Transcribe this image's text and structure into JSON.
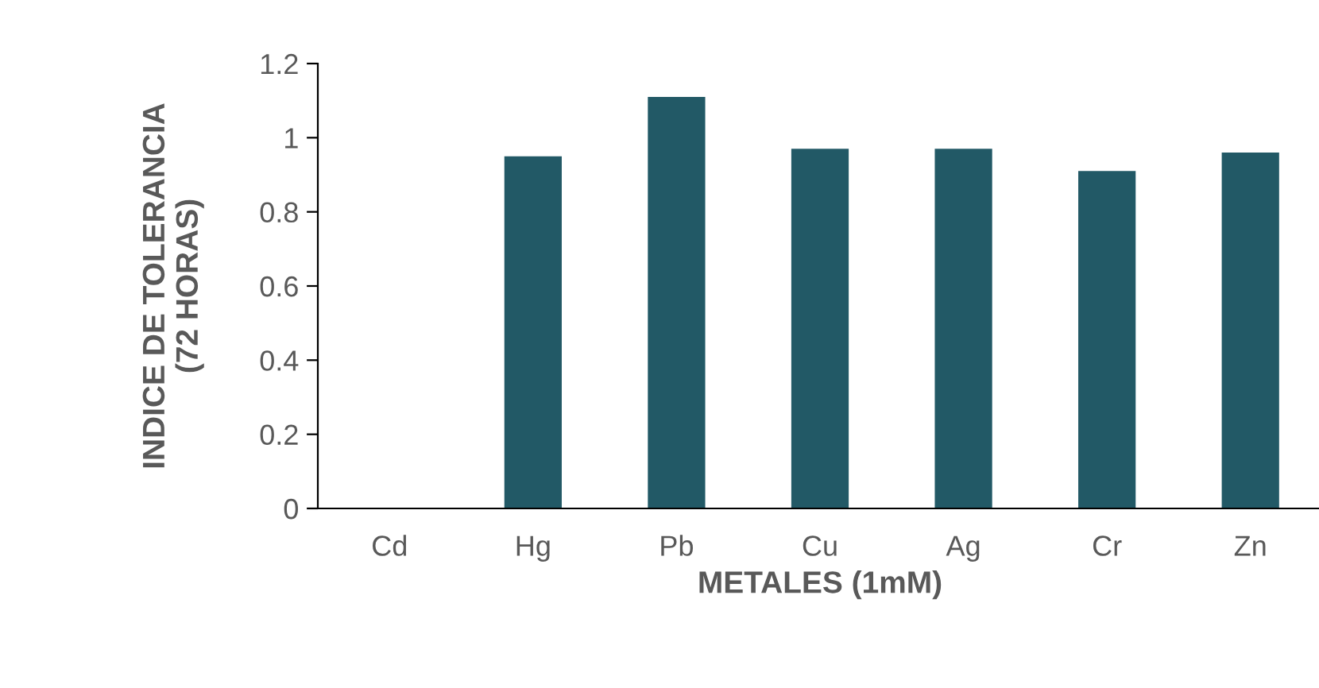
{
  "chart_data": {
    "type": "bar",
    "xlabel": "METALES (1mM)",
    "ylabel": "INDICE DE TOLERANCIA\n(72 HORAS)",
    "categories": [
      "Cd",
      "Hg",
      "Pb",
      "Cu",
      "Ag",
      "Cr",
      "Zn"
    ],
    "values": [
      0,
      0.95,
      1.11,
      0.97,
      0.97,
      0.91,
      0.96
    ],
    "color": "#225966",
    "ylim": [
      0,
      1.2
    ],
    "yticks": [
      0,
      0.2,
      0.4,
      0.6,
      0.8,
      1,
      1.2
    ],
    "grid": false,
    "legend": false
  }
}
